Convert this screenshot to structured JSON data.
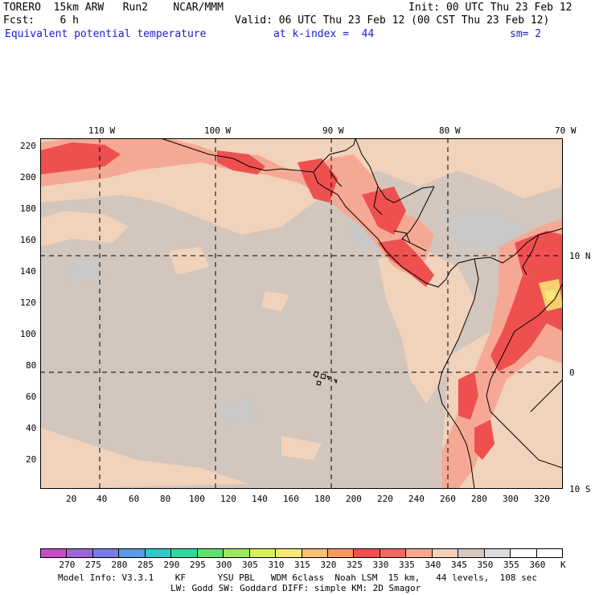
{
  "header": {
    "model": "TORERO  15km ARW   Run2    NCAR/MMM",
    "init": "Init: 00 UTC Thu 23 Feb 12",
    "fcst": "Fcst:    6 h",
    "valid": "Valid: 06 UTC Thu 23 Feb 12 (00 CST Thu 23 Feb 12)",
    "field": "Equivalent potential temperature",
    "level": "at k-index =  44",
    "smoothing": "sm= 2"
  },
  "top_lon_labels": [
    "110 W",
    "100 W",
    "90 W",
    "80 W",
    "70 W"
  ],
  "right_lat_labels": [
    "10 N",
    "0",
    "10 S"
  ],
  "y_ticks": [
    "220",
    "200",
    "180",
    "160",
    "140",
    "120",
    "100",
    "80",
    "60",
    "40",
    "20"
  ],
  "x_ticks": [
    "20",
    "40",
    "60",
    "80",
    "100",
    "120",
    "140",
    "160",
    "180",
    "200",
    "220",
    "240",
    "260",
    "280",
    "300",
    "320"
  ],
  "colorbar": {
    "labels": [
      "270",
      "275",
      "280",
      "285",
      "290",
      "295",
      "300",
      "305",
      "310",
      "315",
      "320",
      "325",
      "330",
      "335",
      "340",
      "345",
      "350",
      "355",
      "360"
    ],
    "unit": "K",
    "colors": [
      "#c84cc8",
      "#9a66d8",
      "#7a7ae8",
      "#5a9ae8",
      "#30c8c8",
      "#30d8a0",
      "#60e070",
      "#a0e860",
      "#d8f060",
      "#f8e878",
      "#f8c070",
      "#f89860",
      "#f05050",
      "#f06a60",
      "#f8a890",
      "#f4d0b8",
      "#d4c8c0",
      "#dcdcdc",
      "#ffffff",
      "#ffffff"
    ]
  },
  "footer": {
    "line1": "Model Info: V3.3.1    KF      YSU PBL   WDM 6class  Noah LSM  15 km,   44 levels,  108 sec",
    "line2": "LW: Godd SW: Goddard DIFF: simple KM: 2D Smagor"
  }
}
